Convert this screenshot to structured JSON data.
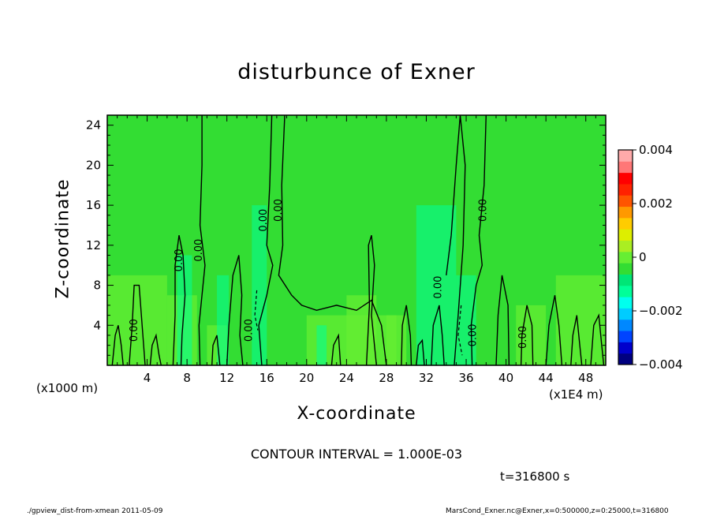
{
  "chart_data": {
    "type": "heatmap",
    "title": "disturbunce of Exner",
    "xlabel": "X-coordinate",
    "ylabel": "Z-coordinate",
    "x_unit_left": "(x1000 m)",
    "x_unit_right": "(x1E4 m)",
    "xlim": [
      0,
      50
    ],
    "ylim": [
      0,
      25
    ],
    "x_ticks": [
      4,
      8,
      12,
      16,
      20,
      24,
      28,
      32,
      36,
      40,
      44,
      48
    ],
    "y_ticks": [
      4,
      8,
      12,
      16,
      20,
      24
    ],
    "colorbar": {
      "min": -0.004,
      "max": 0.004,
      "tick_labels": [
        "0.004",
        "0.002",
        "0",
        "−0.002",
        "−0.004"
      ],
      "tick_values": [
        0.004,
        0.002,
        0,
        -0.002,
        -0.004
      ],
      "colors": [
        "#000080",
        "#0000cc",
        "#0044ff",
        "#0088ff",
        "#00ccff",
        "#00ffee",
        "#00ff99",
        "#00e676",
        "#33dd33",
        "#66ee33",
        "#aaee22",
        "#ddee00",
        "#ffcc00",
        "#ff9900",
        "#ff5500",
        "#ff2200",
        "#ff0000",
        "#ff7777",
        "#ffaaaa"
      ]
    },
    "contour_labels": [
      {
        "text": "0.00",
        "x": 3.0,
        "z": 3.5
      },
      {
        "text": "0.00",
        "x": 7.5,
        "z": 10.5
      },
      {
        "text": "0.00",
        "x": 9.5,
        "z": 11.5
      },
      {
        "text": "0.00",
        "x": 14.5,
        "z": 3.5
      },
      {
        "text": "0.00",
        "x": 16.0,
        "z": 14.5
      },
      {
        "text": "0.00",
        "x": 17.5,
        "z": 15.5
      },
      {
        "text": "0.00",
        "x": 33.5,
        "z": 7.8
      },
      {
        "text": "0.00",
        "x": 37.0,
        "z": 3.0
      },
      {
        "text": "0.00",
        "x": 38.0,
        "z": 15.5
      },
      {
        "text": "0.00",
        "x": 42.0,
        "z": 2.8
      }
    ],
    "colors": {
      "background": "#33dd33",
      "near_zero_pos": "#66ee33",
      "near_zero_neg": "#00e676",
      "negative_band": "#00ff99",
      "contour": "#000000"
    }
  },
  "contour_interval": "CONTOUR INTERVAL = 1.000E-03",
  "time_label": "t=316800 s",
  "footer_left": "./gpview_dist-from-xmean  2011-05-09",
  "footer_right": "MarsCond_Exner.nc@Exner,x=0:500000,z=0:25000,t=316800"
}
